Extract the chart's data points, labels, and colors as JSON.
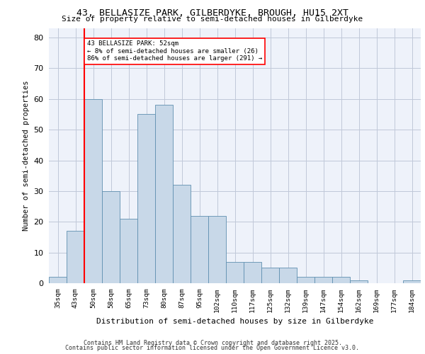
{
  "title1": "43, BELLASIZE PARK, GILBERDYKE, BROUGH, HU15 2XT",
  "title2": "Size of property relative to semi-detached houses in Gilberdyke",
  "xlabel": "Distribution of semi-detached houses by size in Gilberdyke",
  "ylabel": "Number of semi-detached properties",
  "bin_labels": [
    "35sqm",
    "43sqm",
    "50sqm",
    "58sqm",
    "65sqm",
    "73sqm",
    "80sqm",
    "87sqm",
    "95sqm",
    "102sqm",
    "110sqm",
    "117sqm",
    "125sqm",
    "132sqm",
    "139sqm",
    "147sqm",
    "154sqm",
    "162sqm",
    "169sqm",
    "177sqm",
    "184sqm"
  ],
  "bar_values": [
    2,
    17,
    60,
    30,
    21,
    55,
    58,
    32,
    22,
    22,
    7,
    7,
    5,
    5,
    2,
    2,
    2,
    1,
    0,
    0,
    1
  ],
  "bar_color": "#c8d8e8",
  "bar_edge_color": "#6090b0",
  "red_line_x": 2,
  "annotation_text": "43 BELLASIZE PARK: 52sqm\n← 8% of semi-detached houses are smaller (26)\n86% of semi-detached houses are larger (291) →",
  "ylim": [
    0,
    83
  ],
  "yticks": [
    0,
    10,
    20,
    30,
    40,
    50,
    60,
    70,
    80
  ],
  "footer1": "Contains HM Land Registry data © Crown copyright and database right 2025.",
  "footer2": "Contains public sector information licensed under the Open Government Licence v3.0.",
  "bg_color": "#eef2fa",
  "grid_color": "#c0c8d8"
}
